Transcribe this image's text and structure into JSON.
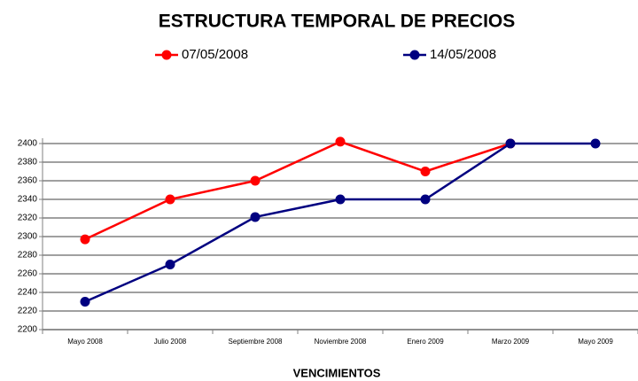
{
  "chart_data": {
    "type": "line",
    "title": "ESTRUCTURA TEMPORAL DE PRECIOS",
    "x_label": "VENCIMIENTOS",
    "categories": [
      "Mayo 2008",
      "Julio 2008",
      "Septiembre 2008",
      "Noviembre 2008",
      "Enero 2009",
      "Marzo 2009",
      "Mayo 2009"
    ],
    "series": [
      {
        "name": "07/05/2008",
        "color": "#ff0000",
        "values": [
          2297,
          2340,
          2360,
          2402,
          2370,
          2400,
          null
        ]
      },
      {
        "name": "14/05/2008",
        "color": "#000080",
        "values": [
          2230,
          2270,
          2321,
          2340,
          2340,
          2400,
          2400
        ]
      }
    ],
    "ylim": [
      2200,
      2400
    ],
    "yticks": [
      2200,
      2220,
      2240,
      2260,
      2280,
      2300,
      2320,
      2340,
      2360,
      2380,
      2400
    ],
    "grid": true
  }
}
